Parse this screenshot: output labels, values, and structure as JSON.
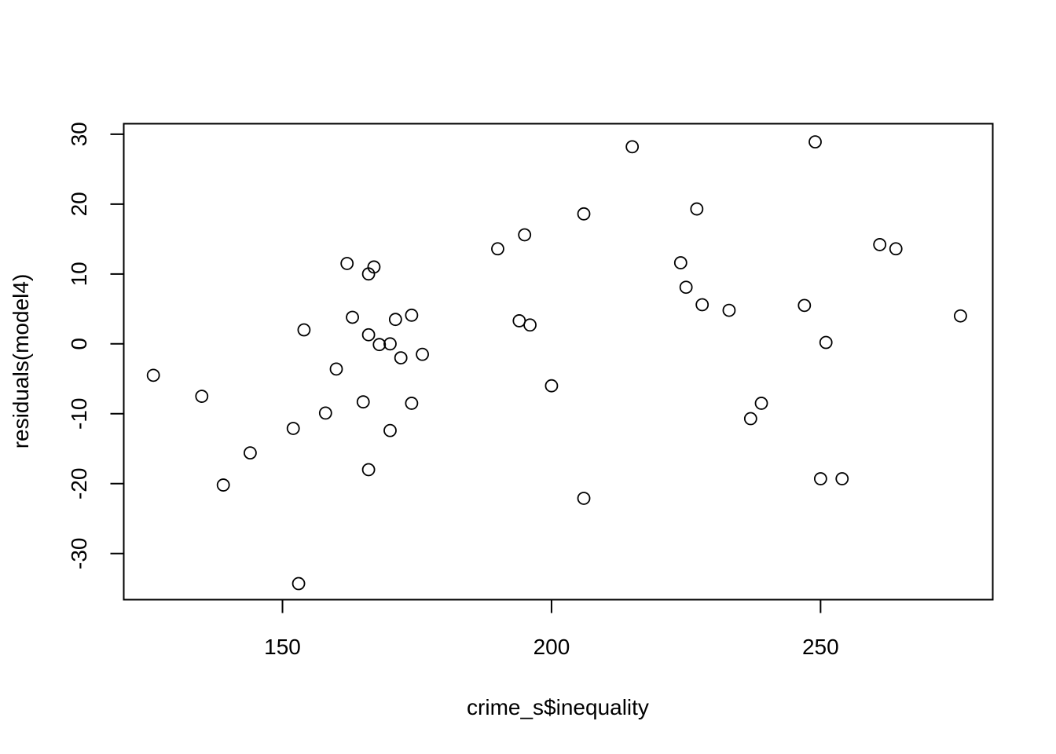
{
  "chart_data": {
    "type": "scatter",
    "xlabel": "crime_s$inequality",
    "ylabel": "residuals(model4)",
    "xlim": [
      120.5,
      282
    ],
    "ylim": [
      -36.6,
      31.5
    ],
    "x_ticks": [
      150,
      200,
      250
    ],
    "y_ticks": [
      -30,
      -20,
      -10,
      0,
      10,
      20,
      30
    ],
    "x_tick_labels": [
      "150",
      "200",
      "250"
    ],
    "y_tick_labels": [
      "-30",
      "-20",
      "-10",
      "0",
      "10",
      "20",
      "30"
    ],
    "grid": false,
    "legend": "none",
    "marker": "open-circle",
    "points": [
      {
        "x": 126,
        "y": -4.5
      },
      {
        "x": 135,
        "y": -7.5
      },
      {
        "x": 139,
        "y": -20.2
      },
      {
        "x": 144,
        "y": -15.6
      },
      {
        "x": 152,
        "y": -12.1
      },
      {
        "x": 153,
        "y": -34.3
      },
      {
        "x": 154,
        "y": 2.0
      },
      {
        "x": 158,
        "y": -9.9
      },
      {
        "x": 160,
        "y": -3.6
      },
      {
        "x": 162,
        "y": 11.5
      },
      {
        "x": 163,
        "y": 3.8
      },
      {
        "x": 165,
        "y": -8.3
      },
      {
        "x": 166,
        "y": 10.0
      },
      {
        "x": 166,
        "y": 1.3
      },
      {
        "x": 166,
        "y": -18.0
      },
      {
        "x": 167,
        "y": 11.0
      },
      {
        "x": 168,
        "y": -0.1
      },
      {
        "x": 170,
        "y": 0.0
      },
      {
        "x": 170,
        "y": -12.4
      },
      {
        "x": 171,
        "y": 3.5
      },
      {
        "x": 172,
        "y": -2.0
      },
      {
        "x": 174,
        "y": 4.1
      },
      {
        "x": 174,
        "y": -8.5
      },
      {
        "x": 176,
        "y": -1.5
      },
      {
        "x": 190,
        "y": 13.6
      },
      {
        "x": 194,
        "y": 3.3
      },
      {
        "x": 195,
        "y": 15.6
      },
      {
        "x": 196,
        "y": 2.7
      },
      {
        "x": 200,
        "y": -6.0
      },
      {
        "x": 206,
        "y": 18.6
      },
      {
        "x": 206,
        "y": -22.1
      },
      {
        "x": 215,
        "y": 28.2
      },
      {
        "x": 224,
        "y": 11.6
      },
      {
        "x": 225,
        "y": 8.1
      },
      {
        "x": 227,
        "y": 19.3
      },
      {
        "x": 228,
        "y": 5.6
      },
      {
        "x": 233,
        "y": 4.8
      },
      {
        "x": 237,
        "y": -10.7
      },
      {
        "x": 239,
        "y": -8.5
      },
      {
        "x": 247,
        "y": 5.5
      },
      {
        "x": 249,
        "y": 28.9
      },
      {
        "x": 250,
        "y": -19.3
      },
      {
        "x": 251,
        "y": 0.2
      },
      {
        "x": 254,
        "y": -19.3
      },
      {
        "x": 261,
        "y": 14.2
      },
      {
        "x": 264,
        "y": 13.6
      },
      {
        "x": 276,
        "y": 4.0
      }
    ]
  }
}
